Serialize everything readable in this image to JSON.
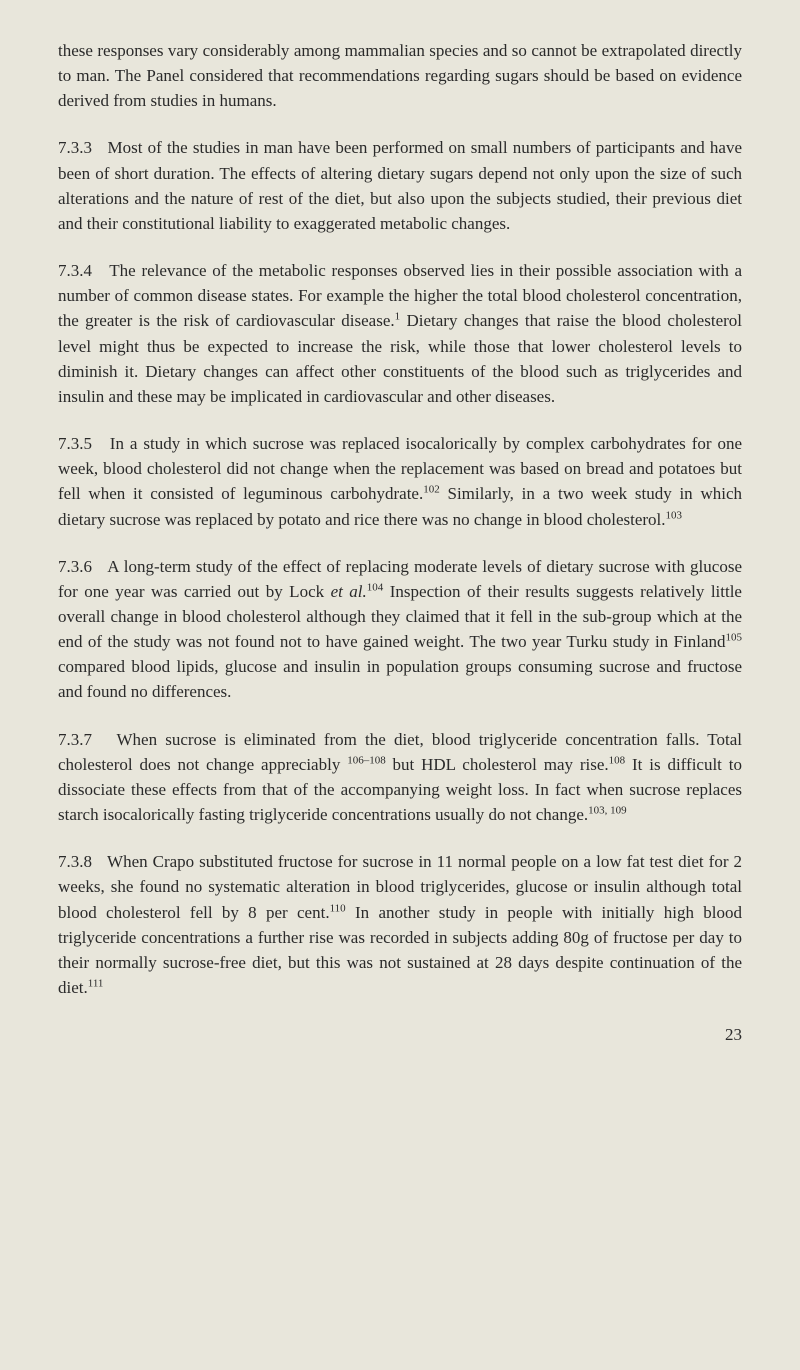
{
  "page": {
    "para1": "these responses vary considerably among mammalian species and so cannot be extrapolated directly to man. The Panel considered that recommendations regarding sugars should be based on evidence derived from studies in humans.",
    "sec733_num": "7.3.3",
    "sec733_text": "Most of the studies in man have been performed on small numbers of participants and have been of short duration. The effects of altering dietary sugars depend not only upon the size of such alterations and the nature of rest of the diet, but also upon the subjects studied, their previous diet and their constitutional liability to exaggerated metabolic changes.",
    "sec734_num": "7.3.4",
    "sec734_a": "The relevance of the metabolic responses observed lies in their possible association with a number of common disease states. For example the higher the total blood cholesterol concentration, the greater is the risk of cardiovascular disease.",
    "sec734_sup1": "1",
    "sec734_b": " Dietary changes that raise the blood cholesterol level might thus be expected to increase the risk, while those that lower cholesterol levels to diminish it. Dietary changes can affect other constituents of the blood such as triglycerides and insulin and these may be implicated in cardiovascular and other diseases.",
    "sec735_num": "7.3.5",
    "sec735_a": "In a study in which sucrose was replaced isocalorically by complex carbohydrates for one week, blood cholesterol did not change when the replacement was based on bread and potatoes but fell when it consisted of leguminous carbohydrate.",
    "sec735_sup1": "102",
    "sec735_b": " Similarly, in a two week study in which dietary sucrose was replaced by potato and rice there was no change in blood cholesterol.",
    "sec735_sup2": "103",
    "sec736_num": "7.3.6",
    "sec736_a": "A long-term study of the effect of replacing moderate levels of dietary sucrose with glucose for one year was carried out by Lock ",
    "sec736_etal": "et al.",
    "sec736_sup1": "104",
    "sec736_b": " Inspection of their results suggests relatively little overall change in blood cholesterol although they claimed that it fell in the sub-group which at the end of the study was not found not to have gained weight. The two year Turku study in Finland",
    "sec736_sup2": "105",
    "sec736_c": " compared blood lipids, glucose and insulin in population groups consuming sucrose and fructose and found no differences.",
    "sec737_num": "7.3.7",
    "sec737_a": "When sucrose is eliminated from the diet, blood triglyceride concentration falls. Total cholesterol does not change appreciably ",
    "sec737_sup1": "106–108",
    "sec737_b": " but HDL cholesterol may rise.",
    "sec737_sup2": "108",
    "sec737_c": " It is difficult to dissociate these effects from that of the accompanying weight loss. In fact when sucrose replaces starch isocalorically fasting triglyceride concentrations usually do not change.",
    "sec737_sup3": "103, 109",
    "sec738_num": "7.3.8",
    "sec738_a": "When Crapo substituted fructose for sucrose in 11 normal people on a low fat test diet for 2 weeks, she found no systematic alteration in blood triglycerides, glucose or insulin although total blood cholesterol fell by 8 per cent.",
    "sec738_sup1": "110",
    "sec738_b": " In another study in people with initially high blood triglyceride concentrations a further rise was recorded in subjects adding 80g of fructose per day to their normally sucrose-free diet, but this was not sustained at 28 days despite continuation of the diet.",
    "sec738_sup2": "111",
    "page_number": "23"
  }
}
